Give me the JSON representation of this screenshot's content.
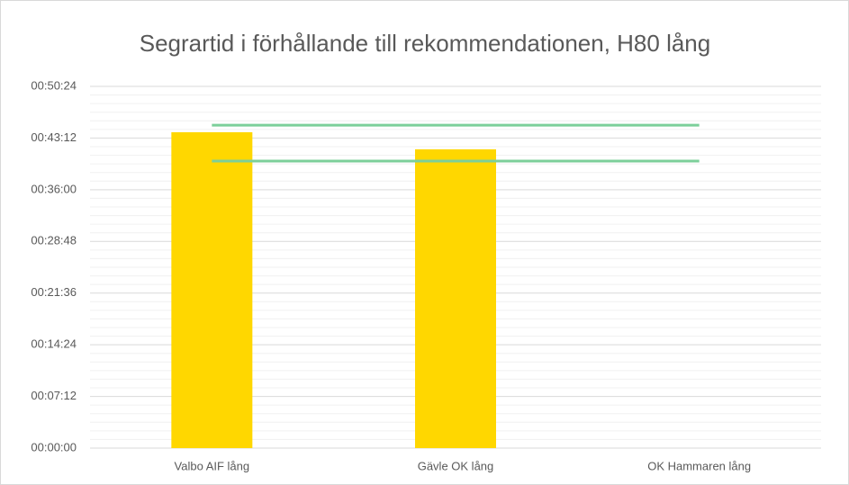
{
  "chart_data": {
    "type": "bar",
    "title": "Segrartid i förhållande till rekommendationen, H80 lång",
    "categories": [
      "Valbo AIF lång",
      "Gävle OK lång",
      "OK Hammaren lång"
    ],
    "series": [
      {
        "type": "bar",
        "color": "#ffd700",
        "values": [
          2641,
          2498,
          null
        ]
      },
      {
        "type": "line",
        "color": "#7ccf9a",
        "values": [
          2700,
          2700,
          2700
        ]
      },
      {
        "type": "line",
        "color": "#7ccf9a",
        "values": [
          2400,
          2400,
          2400
        ]
      }
    ],
    "ylim": [
      0,
      3024
    ],
    "yticks": [
      {
        "value": 0,
        "label": "00:00:00"
      },
      {
        "value": 432,
        "label": "00:07:12"
      },
      {
        "value": 864,
        "label": "00:14:24"
      },
      {
        "value": 1296,
        "label": "00:21:36"
      },
      {
        "value": 1728,
        "label": "00:28:48"
      },
      {
        "value": 2160,
        "label": "00:36:00"
      },
      {
        "value": 2592,
        "label": "00:43:12"
      },
      {
        "value": 3024,
        "label": "00:50:24"
      }
    ],
    "grid": true
  }
}
